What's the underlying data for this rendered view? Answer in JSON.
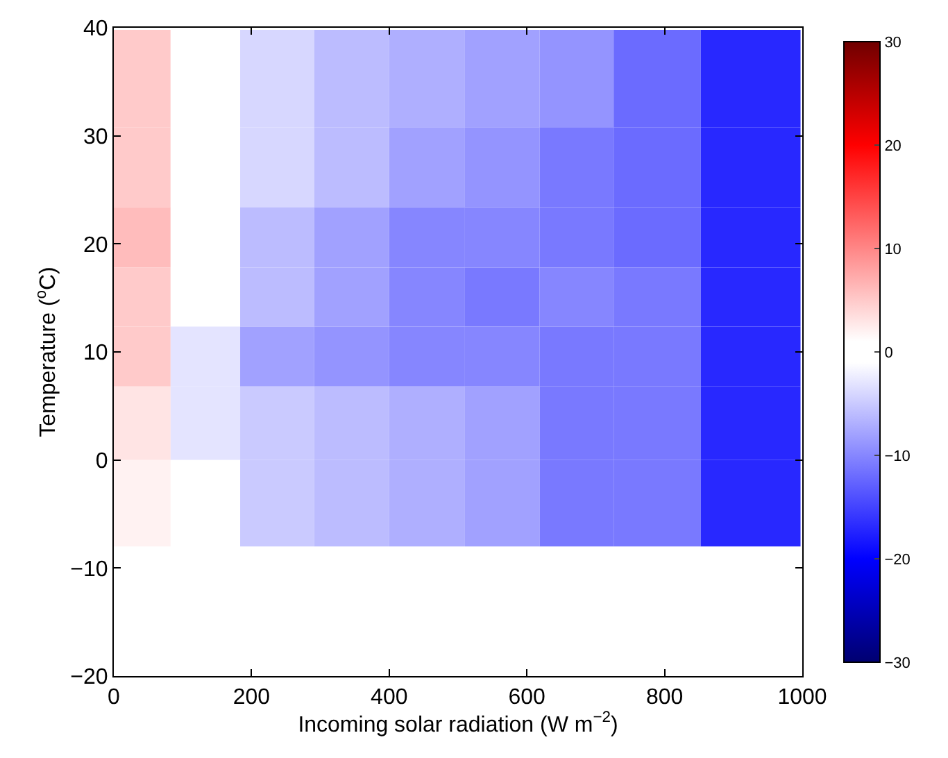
{
  "chart_data": {
    "type": "heatmap",
    "xlabel": "Incoming solar radiation (W m$^{−2}$)",
    "ylabel": "Temperature ($^{o}$C)",
    "x": [
      35,
      130,
      237,
      345,
      455,
      565,
      672,
      780,
      925
    ],
    "y": [
      35.3,
      26.3,
      20.5,
      15.1,
      9.6,
      4,
      -4
    ],
    "cells": [
      [
        5,
        0,
        -4,
        -6,
        -7,
        -8,
        -9,
        -12,
        -17
      ],
      [
        5,
        -1,
        -4,
        -6,
        -8,
        -9,
        -11,
        -12,
        -17
      ],
      [
        6,
        -1,
        -6,
        -8,
        -10,
        -10,
        -11,
        -12,
        -17
      ],
      [
        5,
        -1,
        -6,
        -8,
        -10,
        -11,
        -10,
        -11,
        -17
      ],
      [
        5,
        -3,
        -8,
        -9,
        -10,
        -10,
        -11,
        -11,
        -17
      ],
      [
        3,
        -3,
        -5,
        -6,
        -7,
        -8,
        -11,
        -11,
        -17
      ],
      [
        2,
        0,
        -5,
        -6,
        -7,
        -8,
        -11,
        -11,
        -17
      ]
    ],
    "xlim": [
      0,
      1000
    ],
    "xticks": [
      0,
      200,
      400,
      600,
      800,
      1000
    ],
    "ylim": [
      -20,
      40
    ],
    "yticks": [
      -20,
      -10,
      0,
      10,
      20,
      30,
      40
    ],
    "clim": [
      -30,
      30
    ],
    "cticks": [
      -30,
      -20,
      -10,
      0,
      10,
      20,
      30
    ],
    "grid": false
  }
}
